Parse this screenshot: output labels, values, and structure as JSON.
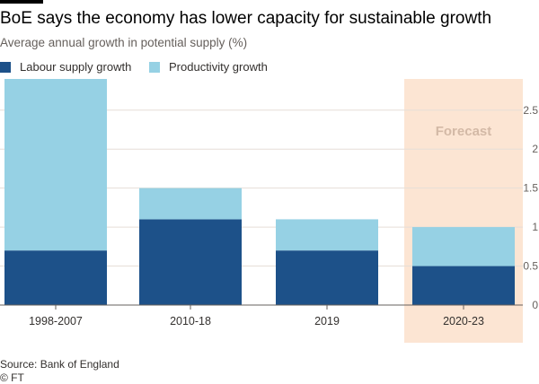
{
  "header": {
    "title": "BoE says the economy has lower capacity for sustainable growth",
    "subtitle": "Average annual growth in potential supply (%)"
  },
  "legend": {
    "items": [
      {
        "label": "Labour supply growth",
        "color": "#1d5189"
      },
      {
        "label": "Productivity growth",
        "color": "#96d1e4"
      }
    ]
  },
  "annotation": {
    "forecast_label": "Forecast",
    "forecast_category": "2020-23",
    "band_color": "#fce5d3",
    "label_color": "#d3b9a6"
  },
  "footer": {
    "source": "Source: Bank of England",
    "credit": "© FT"
  },
  "chart_data": {
    "type": "bar",
    "stacked": true,
    "categories": [
      "1998-2007",
      "2010-18",
      "2019",
      "2020-23"
    ],
    "series": [
      {
        "name": "Labour supply growth",
        "color": "#1d5189",
        "values": [
          0.7,
          1.1,
          0.7,
          0.5
        ]
      },
      {
        "name": "Productivity growth",
        "color": "#96d1e4",
        "values": [
          2.2,
          0.4,
          0.4,
          0.5
        ]
      }
    ],
    "title": "BoE says the economy has lower capacity for sustainable growth",
    "subtitle": "Average annual growth in potential supply (%)",
    "ylim": [
      0,
      2.9
    ],
    "yticks": [
      0,
      0.5,
      1,
      1.5,
      2,
      2.5
    ],
    "ytick_labels": [
      "0",
      "0.5",
      "1",
      "1.5",
      "2",
      "2.5"
    ],
    "y_axis_side": "right",
    "grid": true,
    "legend_position": "top-left"
  }
}
